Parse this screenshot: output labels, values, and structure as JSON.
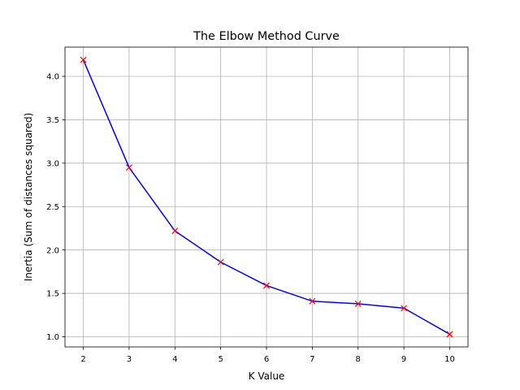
{
  "chart_data": {
    "type": "line",
    "title": "The Elbow Method Curve",
    "xlabel": "K Value",
    "ylabel": "Inertia (Sum of distances squared)",
    "x": [
      2,
      3,
      4,
      5,
      6,
      7,
      8,
      9,
      10
    ],
    "series": [
      {
        "values": [
          4.19,
          2.95,
          2.22,
          1.86,
          1.59,
          1.41,
          1.38,
          1.33,
          1.03
        ],
        "line_color": "#0000ff",
        "marker": "x",
        "marker_color": "#ff0000"
      }
    ],
    "xticks": [
      2,
      3,
      4,
      5,
      6,
      7,
      8,
      9,
      10
    ],
    "xtick_labels": [
      "2",
      "3",
      "4",
      "5",
      "6",
      "7",
      "8",
      "9",
      "10"
    ],
    "yticks": [
      1.0,
      1.5,
      2.0,
      2.5,
      3.0,
      3.5,
      4.0
    ],
    "ytick_labels": [
      "1.0",
      "1.5",
      "2.0",
      "2.5",
      "3.0",
      "3.5",
      "4.0"
    ],
    "xlim": [
      1.6,
      10.4
    ],
    "ylim": [
      0.883,
      4.337
    ],
    "grid": true,
    "grid_color": "#b0b0b0"
  }
}
